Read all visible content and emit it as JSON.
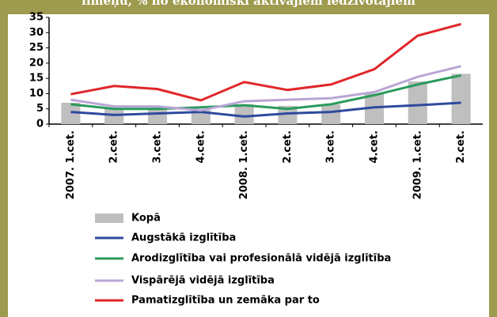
{
  "chart_data": {
    "type": "bar",
    "title": "līmeņu, % no ekonomiski aktīvajiem iedzīvotājiem",
    "categories": [
      "2007. 1.cet.",
      "2.cet.",
      "3.cet.",
      "4.cet.",
      "2008. 1.cet.",
      "2.cet.",
      "3.cet.",
      "4.cet.",
      "2009. 1.cet.",
      "2.cet."
    ],
    "series": [
      {
        "name": "Kopā",
        "type": "bar",
        "color": "#bfbfbf",
        "values": [
          7,
          5,
          5.5,
          5,
          6.5,
          6,
          6.5,
          10,
          14,
          16.5
        ]
      },
      {
        "name": "Augstākā izglītība",
        "type": "line",
        "color": "#2e4a9e",
        "values": [
          4,
          3,
          3.5,
          4,
          2.5,
          3.5,
          4,
          5.5,
          6.2,
          7
        ]
      },
      {
        "name": "Arodizglītība vai profesionālā vidējā izglītība",
        "type": "line",
        "color": "#2a9a5c",
        "values": [
          6.5,
          5,
          5,
          5.5,
          6.2,
          5,
          6.5,
          9.5,
          13,
          16
        ]
      },
      {
        "name": "Vispārējā vidējā izglītība",
        "type": "line",
        "color": "#b8a6d6",
        "values": [
          8,
          5.8,
          5.8,
          4.5,
          7.5,
          8,
          8.5,
          10.5,
          15.5,
          19
        ]
      },
      {
        "name": "Pamatizglītība un zemāka par to",
        "type": "line",
        "color": "#e0262a",
        "values": [
          9.8,
          12.5,
          11.5,
          7.8,
          13.8,
          11.2,
          13,
          18,
          29,
          32.8
        ]
      }
    ],
    "ylim": [
      0,
      35
    ],
    "yticks": [
      0,
      5,
      10,
      15,
      20,
      25,
      30,
      35
    ]
  }
}
